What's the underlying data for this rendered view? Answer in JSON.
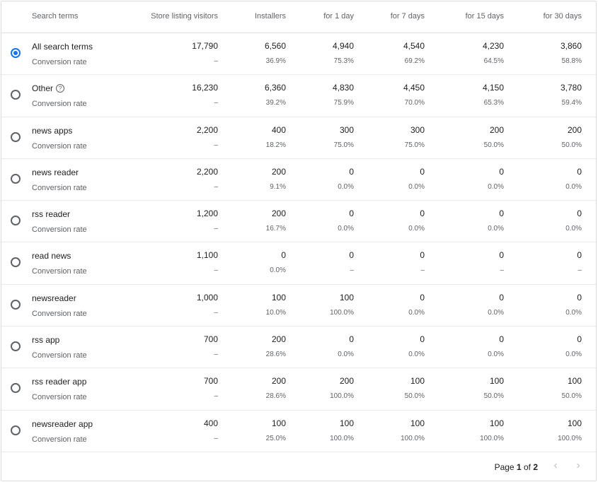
{
  "columns": {
    "term": "Search terms",
    "visitors": "Store listing visitors",
    "installers": "Installers",
    "d1": "for 1 day",
    "d7": "for 7 days",
    "d15": "for 15 days",
    "d30": "for 30 days"
  },
  "conversion_label": "Conversion rate",
  "rows": [
    {
      "term": "All search terms",
      "selected": true,
      "help": false,
      "values": [
        "17,790",
        "6,560",
        "4,940",
        "4,540",
        "4,230",
        "3,860"
      ],
      "rates": [
        "–",
        "36.9%",
        "75.3%",
        "69.2%",
        "64.5%",
        "58.8%"
      ]
    },
    {
      "term": "Other",
      "selected": false,
      "help": true,
      "values": [
        "16,230",
        "6,360",
        "4,830",
        "4,450",
        "4,150",
        "3,780"
      ],
      "rates": [
        "–",
        "39.2%",
        "75.9%",
        "70.0%",
        "65.3%",
        "59.4%"
      ]
    },
    {
      "term": "news apps",
      "selected": false,
      "help": false,
      "values": [
        "2,200",
        "400",
        "300",
        "300",
        "200",
        "200"
      ],
      "rates": [
        "–",
        "18.2%",
        "75.0%",
        "75.0%",
        "50.0%",
        "50.0%"
      ]
    },
    {
      "term": "news reader",
      "selected": false,
      "help": false,
      "values": [
        "2,200",
        "200",
        "0",
        "0",
        "0",
        "0"
      ],
      "rates": [
        "–",
        "9.1%",
        "0.0%",
        "0.0%",
        "0.0%",
        "0.0%"
      ]
    },
    {
      "term": "rss reader",
      "selected": false,
      "help": false,
      "values": [
        "1,200",
        "200",
        "0",
        "0",
        "0",
        "0"
      ],
      "rates": [
        "–",
        "16.7%",
        "0.0%",
        "0.0%",
        "0.0%",
        "0.0%"
      ]
    },
    {
      "term": "read news",
      "selected": false,
      "help": false,
      "values": [
        "1,100",
        "0",
        "0",
        "0",
        "0",
        "0"
      ],
      "rates": [
        "–",
        "0.0%",
        "–",
        "–",
        "–",
        "–"
      ]
    },
    {
      "term": "newsreader",
      "selected": false,
      "help": false,
      "values": [
        "1,000",
        "100",
        "100",
        "0",
        "0",
        "0"
      ],
      "rates": [
        "–",
        "10.0%",
        "100.0%",
        "0.0%",
        "0.0%",
        "0.0%"
      ]
    },
    {
      "term": "rss app",
      "selected": false,
      "help": false,
      "values": [
        "700",
        "200",
        "0",
        "0",
        "0",
        "0"
      ],
      "rates": [
        "–",
        "28.6%",
        "0.0%",
        "0.0%",
        "0.0%",
        "0.0%"
      ]
    },
    {
      "term": "rss reader app",
      "selected": false,
      "help": false,
      "values": [
        "700",
        "200",
        "200",
        "100",
        "100",
        "100"
      ],
      "rates": [
        "–",
        "28.6%",
        "100.0%",
        "50.0%",
        "50.0%",
        "50.0%"
      ]
    },
    {
      "term": "newsreader app",
      "selected": false,
      "help": false,
      "values": [
        "400",
        "100",
        "100",
        "100",
        "100",
        "100"
      ],
      "rates": [
        "–",
        "25.0%",
        "100.0%",
        "100.0%",
        "100.0%",
        "100.0%"
      ]
    }
  ],
  "help_glyph": "?",
  "pagination": {
    "prefix": "Page ",
    "current": "1",
    "separator": " of ",
    "total": "2",
    "prev_glyph": "‹",
    "next_glyph": "›"
  },
  "icons": {
    "help": "help-circle-icon",
    "prev": "chevron-left-icon",
    "next": "chevron-right-icon"
  },
  "colors": {
    "accent": "#1a73e8",
    "text": "#202124",
    "muted": "#5f6368",
    "disabled": "#bdc1c6"
  }
}
